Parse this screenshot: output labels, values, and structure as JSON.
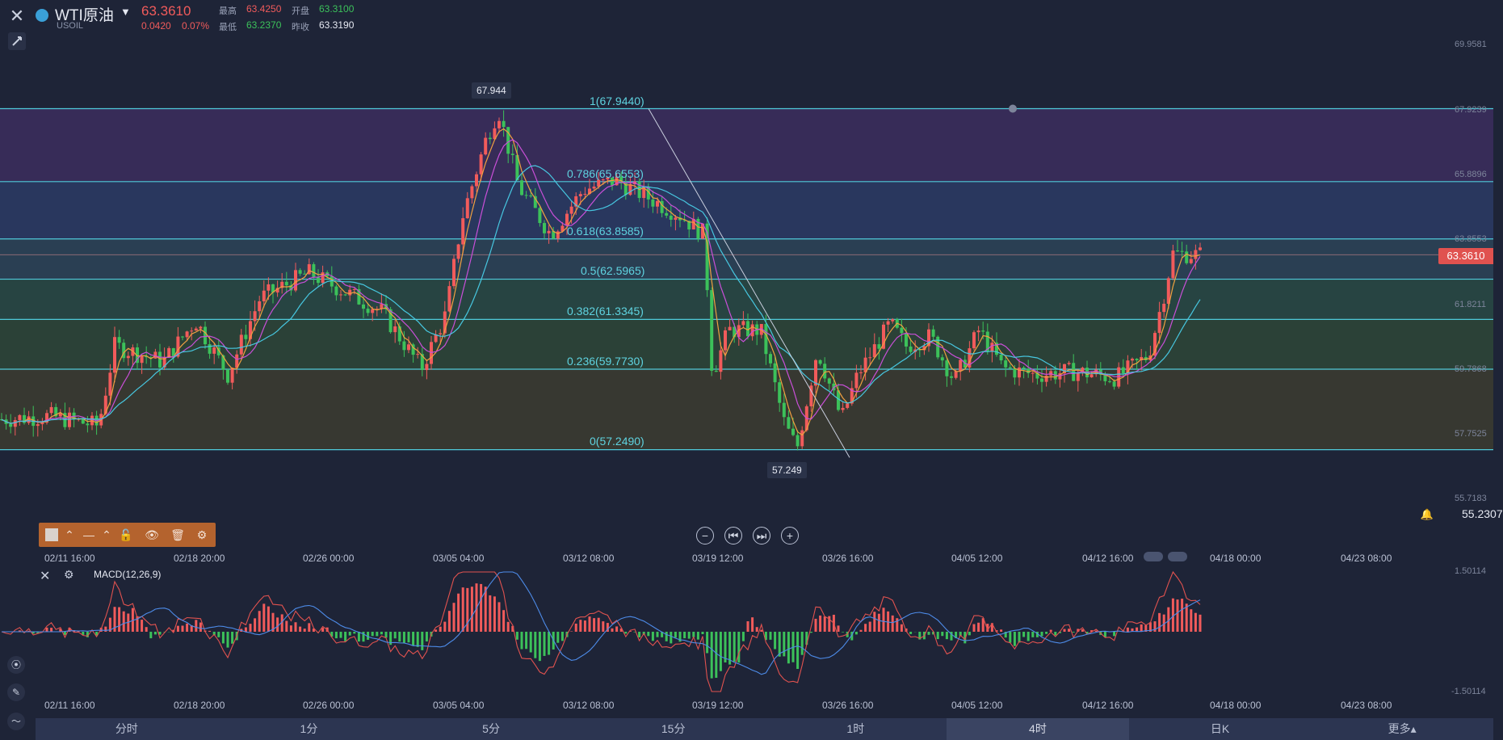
{
  "symbol": {
    "name": "WTI原油",
    "code": "USOIL",
    "last": "63.3610",
    "change": "0.0420",
    "change_pct": "0.07%"
  },
  "stats": {
    "high_label": "最高",
    "high": "63.4250",
    "open_label": "开盘",
    "open": "63.3100",
    "low_label": "最低",
    "low": "63.2370",
    "prev_label": "昨收",
    "prev": "63.3190"
  },
  "colors": {
    "up": "#f15b5b",
    "down": "#3cc15a",
    "fib": "#4fc9d9",
    "bg": "#1e2437"
  },
  "price_axis": [
    "69.9581",
    "67.9239",
    "65.8896",
    "63.8553",
    "61.8211",
    "59.7868",
    "57.7525",
    "55.7183"
  ],
  "price_tag": "63.3610",
  "alert_value": "55.2307",
  "fib_levels": [
    {
      "label": "1(67.9440)",
      "value": 67.944
    },
    {
      "label": "0.786(65.6553)",
      "value": 65.6553
    },
    {
      "label": "0.618(63.8585)",
      "value": 63.8585
    },
    {
      "label": "0.5(62.5965)",
      "value": 62.5965
    },
    {
      "label": "0.382(61.3345)",
      "value": 61.3345
    },
    {
      "label": "0.236(59.7730)",
      "value": 59.773
    },
    {
      "label": "0(57.2490)",
      "value": 57.249
    }
  ],
  "callouts": {
    "high": "67.944",
    "low": "57.249"
  },
  "dates": [
    "02/11 16:00",
    "02/18 20:00",
    "02/26 00:00",
    "03/05 04:00",
    "03/12 08:00",
    "03/19 12:00",
    "03/26 16:00",
    "04/05 12:00",
    "04/12 16:00",
    "04/18 00:00",
    "04/23 08:00"
  ],
  "macd": {
    "title": "MACD(12,26,9)",
    "axis_top": "1.50114",
    "axis_bottom": "-1.50114"
  },
  "tabs": [
    "分时",
    "1分",
    "5分",
    "15分",
    "1时",
    "4时",
    "日K",
    "更多▴"
  ],
  "active_tab": "4时",
  "icons": {
    "close": "close-icon",
    "pin": "pin-icon",
    "caret": "caret-down-icon",
    "bell": "bell-icon",
    "gear": "gear-icon"
  }
}
